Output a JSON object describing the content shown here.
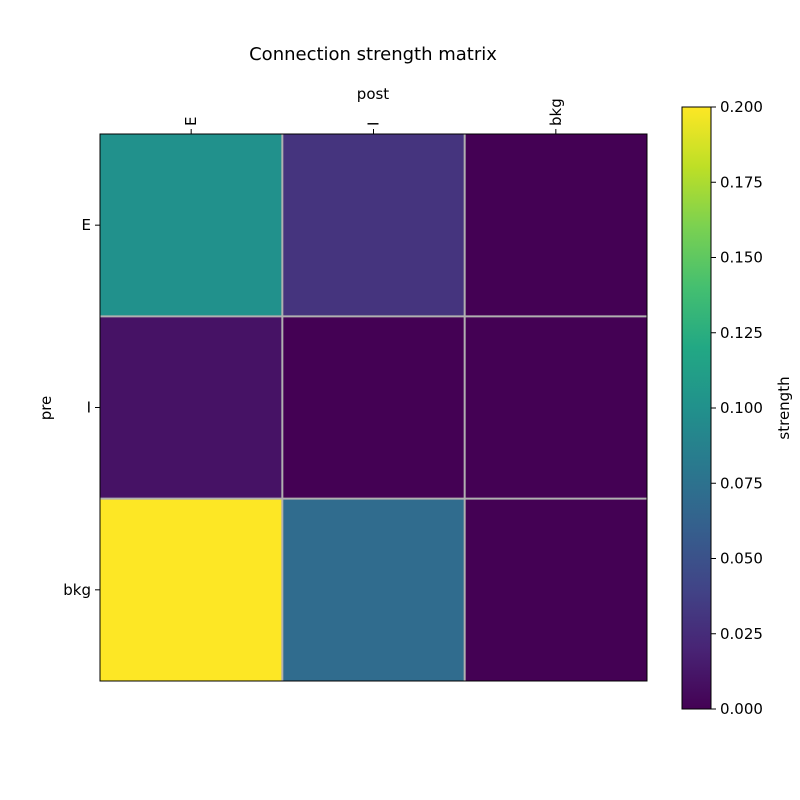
{
  "chart_data": {
    "type": "heatmap",
    "title": "Connection strength matrix",
    "xlabel": "post",
    "ylabel": "pre",
    "x_categories": [
      "E",
      "I",
      "bkg"
    ],
    "y_categories": [
      "E",
      "I",
      "bkg"
    ],
    "values": [
      [
        0.1,
        0.03,
        0.0
      ],
      [
        0.01,
        0.0,
        0.0
      ],
      [
        0.2,
        0.07,
        0.0
      ]
    ],
    "colorbar": {
      "label": "strength",
      "range": [
        0.0,
        0.2
      ],
      "ticks": [
        "0.000",
        "0.025",
        "0.050",
        "0.075",
        "0.100",
        "0.125",
        "0.150",
        "0.175",
        "0.200"
      ],
      "colormap": "viridis"
    },
    "x_axis_position": "top",
    "grid_color": "#b0b0b0"
  }
}
